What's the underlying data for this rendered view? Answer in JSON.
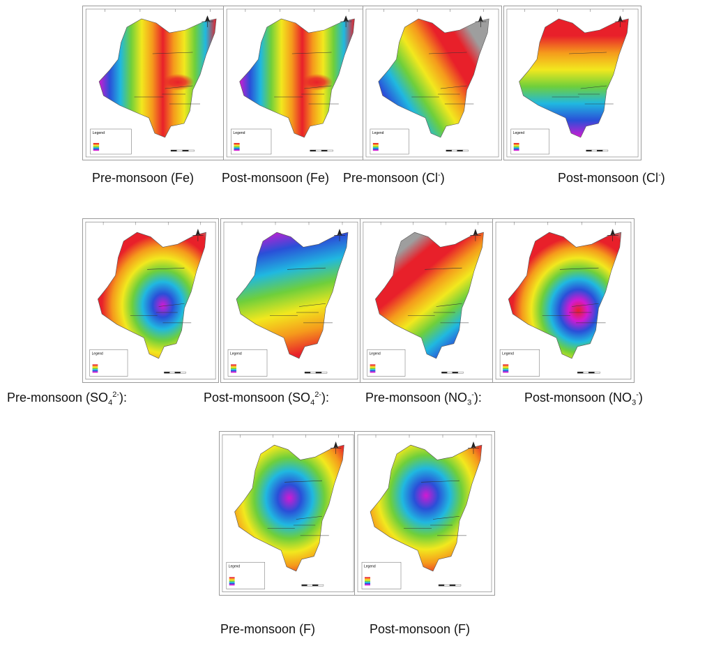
{
  "figure": {
    "panels": [
      {
        "caption_main": "Pre-monsoon (Fe)",
        "scheme": "fe_pre"
      },
      {
        "caption_main": "Post-monsoon (Fe)",
        "scheme": "fe_post"
      },
      {
        "caption_main": "Pre-monsoon (Cl",
        "caption_sup": "-",
        "caption_tail": ")",
        "scheme": "cl_pre"
      },
      {
        "caption_main": "Post-monsoon (Cl",
        "caption_sup": "-",
        "caption_tail": ")",
        "scheme": "cl_post"
      },
      {
        "caption_main": "Pre-monsoon (SO",
        "caption_sub": "4",
        "caption_sup": "2-",
        "caption_tail": "):",
        "scheme": "so4_pre"
      },
      {
        "caption_main": "Post-monsoon (SO",
        "caption_sub": "4",
        "caption_sup": "2-",
        "caption_tail": "):",
        "scheme": "so4_post"
      },
      {
        "caption_main": "Pre-monsoon (NO",
        "caption_sub": "3",
        "caption_sup": "-",
        "caption_tail": "):",
        "scheme": "no3_pre"
      },
      {
        "caption_main": "Post-monsoon (NO",
        "caption_sub": "3",
        "caption_sup": "-",
        "caption_tail": ")",
        "scheme": "no3_post"
      },
      {
        "caption_main": "Pre-monsoon (F)",
        "scheme": "f_pre"
      },
      {
        "caption_main": "Post-monsoon (F)",
        "scheme": "f_post"
      }
    ],
    "legend_title": "Legend",
    "colors": {
      "red": "#e8202a",
      "orange": "#f59a1c",
      "yellow": "#f2e81e",
      "green": "#6fcf3b",
      "cyan": "#20b8e0",
      "blue": "#2a4fd8",
      "magenta": "#d21ad2",
      "grey": "#9e9e9e"
    }
  }
}
